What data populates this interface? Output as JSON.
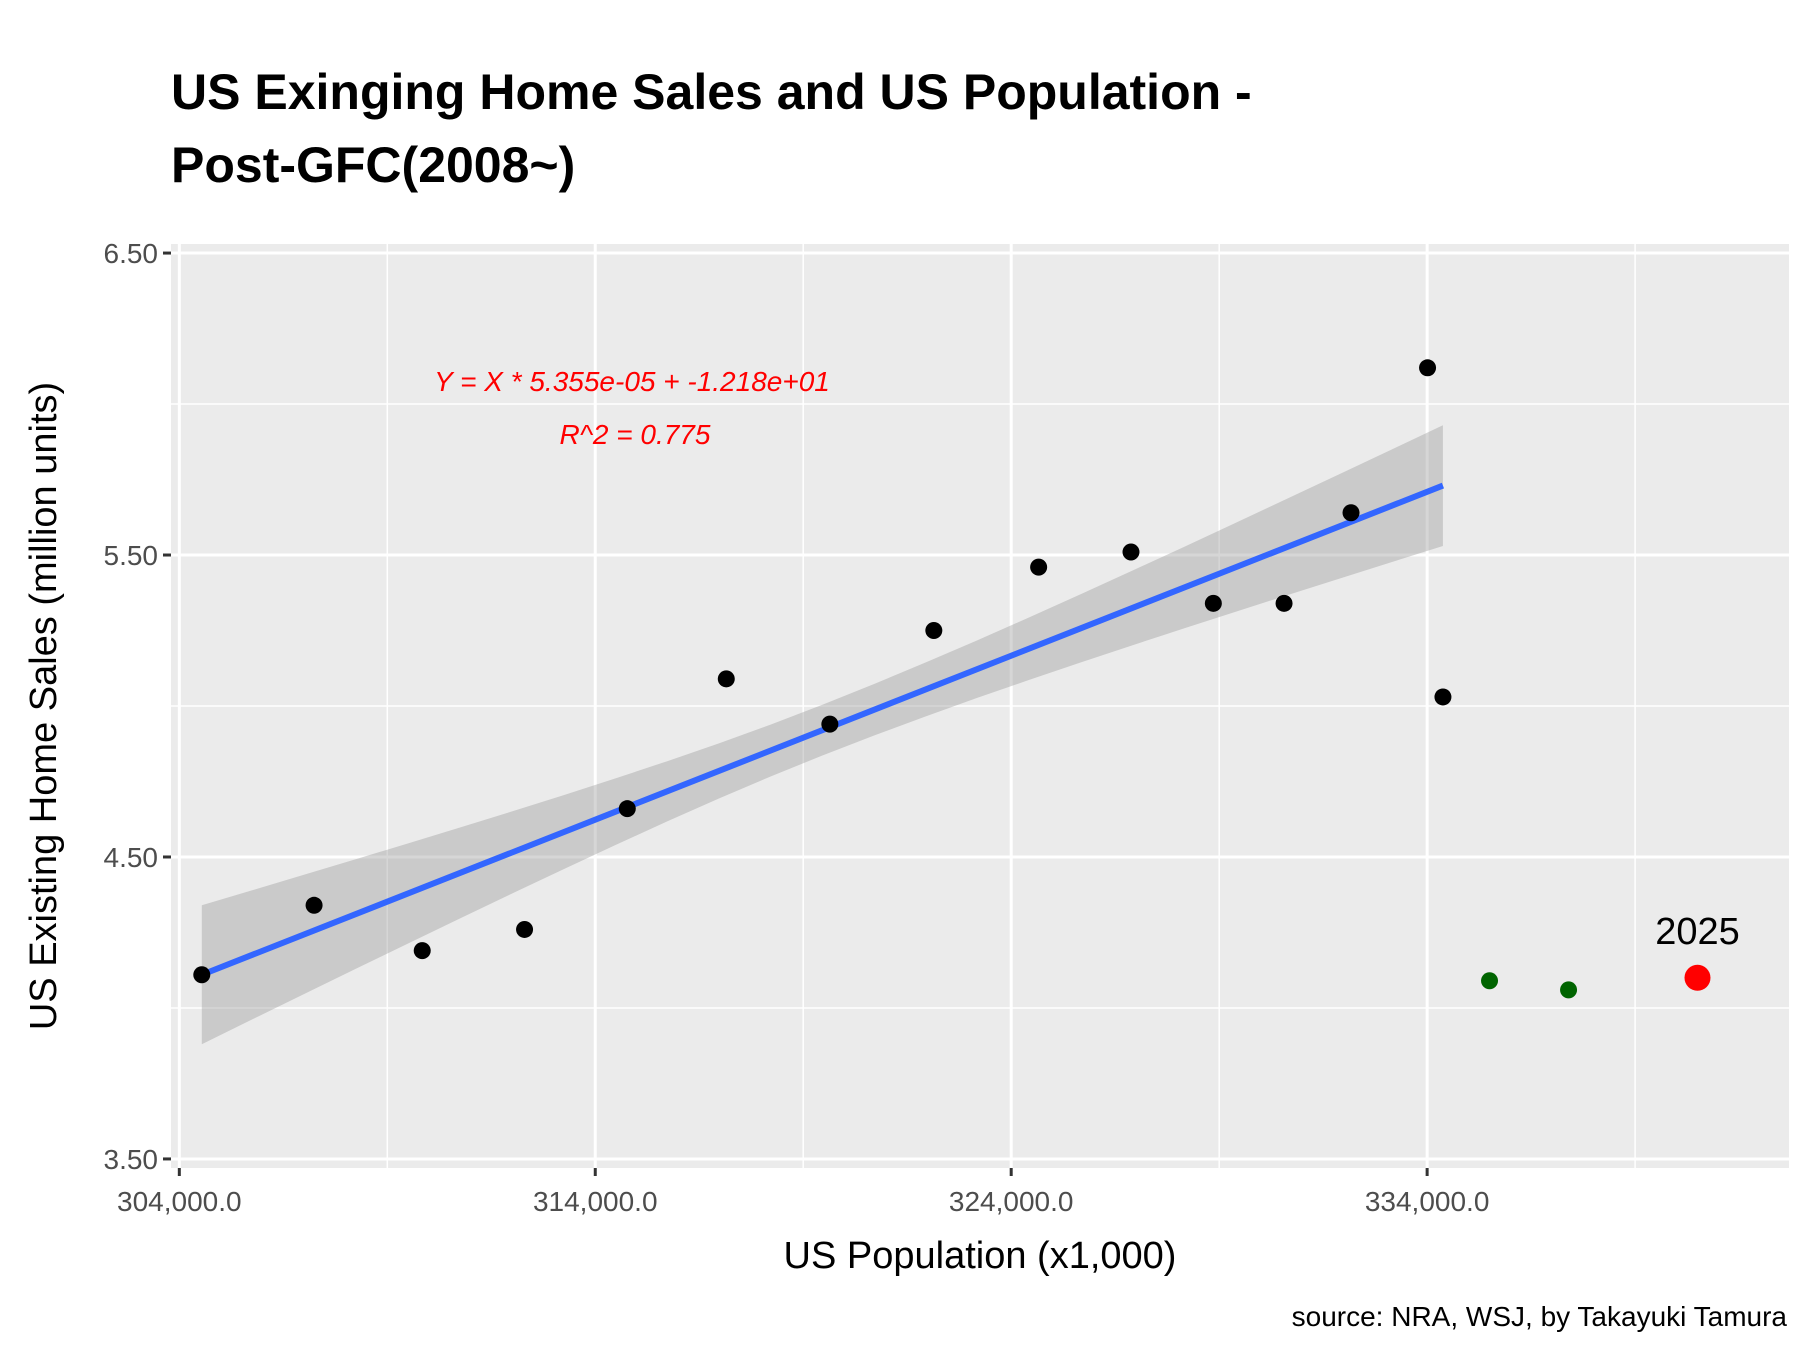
{
  "chart_data": {
    "type": "scatter",
    "title_line1": "US Exinging Home Sales and US Population -",
    "title_line2": "Post-GFC(2008~)",
    "xlabel": "US Population (x1,000)",
    "ylabel": "US Existing Home Sales (million units)",
    "caption": "source: NRA, WSJ, by Takayuki Tamura",
    "xlim": [
      303800,
      342700
    ],
    "ylim": [
      3.47,
      6.53
    ],
    "x_ticks": [
      304000,
      314000,
      324000,
      334000
    ],
    "x_tick_labels": [
      "304,000.0",
      "314,000.0",
      "324,000.0",
      "334,000.0"
    ],
    "x_minor_ticks": [
      309000,
      319000,
      329000,
      339000
    ],
    "y_ticks": [
      3.5,
      4.5,
      5.5,
      6.5
    ],
    "y_tick_labels": [
      "3.50",
      "4.50",
      "5.50",
      "6.50"
    ],
    "y_minor_ticks": [
      4.0,
      5.0,
      6.0
    ],
    "grid": true,
    "equation_line1": "Y = X * 5.355e-05 + -1.218e+01",
    "equation_line2": "R^2 = 0.775",
    "equation_color": "#ff0000",
    "regression": {
      "x_start": 304540,
      "x_end": 334380,
      "y_start": 4.11,
      "y_end": 5.73,
      "color": "#3366ff"
    },
    "confidence_band": {
      "x": [
        304540,
        334380
      ],
      "upper": [
        4.34,
        5.93
      ],
      "lower": [
        3.93,
        5.55
      ],
      "color": "#999999"
    },
    "series": [
      {
        "color": "#000000",
        "x": [
          304540,
          307240,
          309840,
          312300,
          314770,
          317150,
          319640,
          322140,
          324660,
          326880,
          328860,
          330560,
          332170,
          334010,
          334380
        ],
        "y": [
          4.11,
          4.34,
          4.19,
          4.26,
          4.66,
          5.09,
          4.94,
          5.25,
          5.46,
          5.51,
          5.34,
          5.34,
          5.64,
          6.12,
          5.03
        ]
      },
      {
        "color": "#006400",
        "x": [
          335500,
          337400
        ],
        "y": [
          4.09,
          4.06
        ]
      },
      {
        "color": "#ff0000",
        "x": [
          340500
        ],
        "y": [
          4.1
        ],
        "label": "2025"
      }
    ]
  }
}
